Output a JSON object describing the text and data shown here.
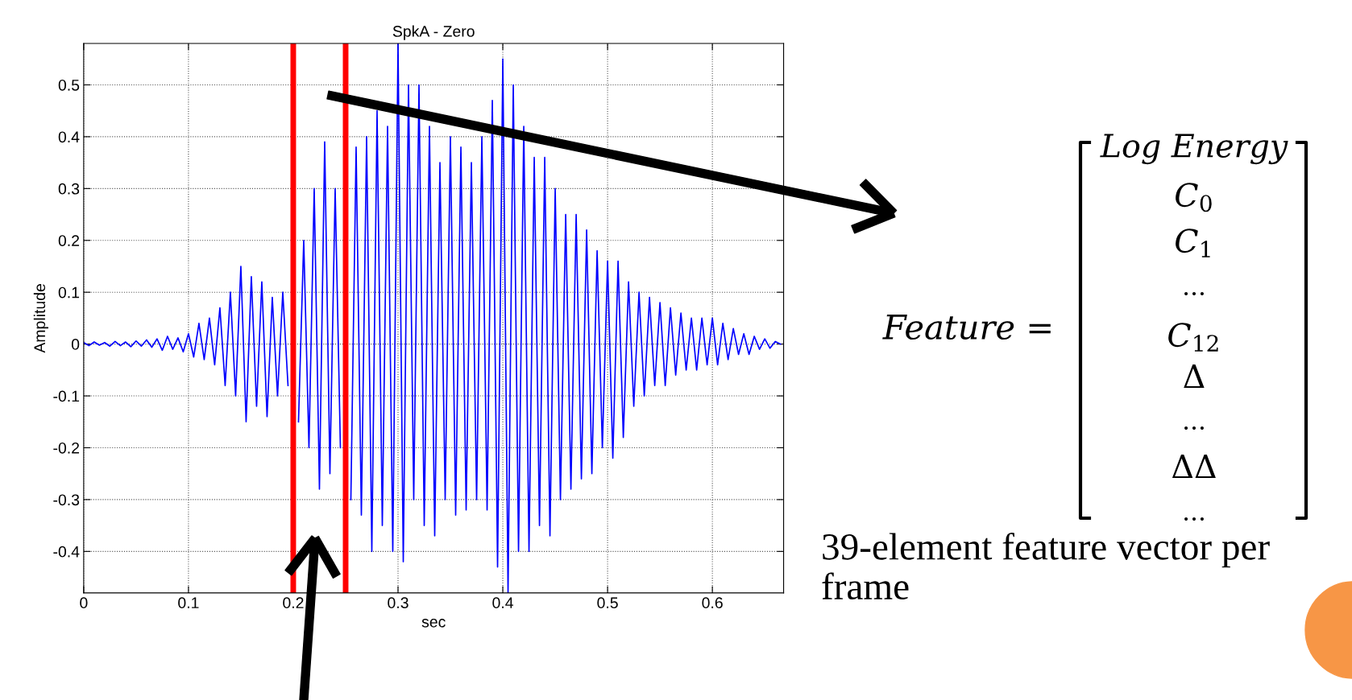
{
  "chart_data": {
    "type": "line",
    "title": "SpkA - Zero",
    "xlabel": "sec",
    "ylabel": "Amplitude",
    "x": [
      0,
      0.005,
      0.01,
      0.015,
      0.02,
      0.025,
      0.03,
      0.035,
      0.04,
      0.045,
      0.05,
      0.055,
      0.06,
      0.065,
      0.07,
      0.075,
      0.08,
      0.085,
      0.09,
      0.095,
      0.1,
      0.105,
      0.11,
      0.115,
      0.12,
      0.125,
      0.13,
      0.135,
      0.14,
      0.145,
      0.15,
      0.155,
      0.16,
      0.165,
      0.17,
      0.175,
      0.18,
      0.185,
      0.19,
      0.195,
      0.2,
      0.205,
      0.21,
      0.215,
      0.22,
      0.225,
      0.23,
      0.235,
      0.24,
      0.245,
      0.25,
      0.255,
      0.26,
      0.265,
      0.27,
      0.275,
      0.28,
      0.285,
      0.29,
      0.295,
      0.3,
      0.305,
      0.31,
      0.315,
      0.32,
      0.325,
      0.33,
      0.335,
      0.34,
      0.345,
      0.35,
      0.355,
      0.36,
      0.365,
      0.37,
      0.375,
      0.38,
      0.385,
      0.39,
      0.395,
      0.4,
      0.405,
      0.41,
      0.415,
      0.42,
      0.425,
      0.43,
      0.435,
      0.44,
      0.445,
      0.45,
      0.455,
      0.46,
      0.465,
      0.47,
      0.475,
      0.48,
      0.485,
      0.49,
      0.495,
      0.5,
      0.505,
      0.51,
      0.515,
      0.52,
      0.525,
      0.53,
      0.535,
      0.54,
      0.545,
      0.55,
      0.555,
      0.56,
      0.565,
      0.57,
      0.575,
      0.58,
      0.585,
      0.59,
      0.595,
      0.6,
      0.605,
      0.61,
      0.615,
      0.62,
      0.625,
      0.63,
      0.635,
      0.64,
      0.645,
      0.65,
      0.655,
      0.66,
      0.665
    ],
    "series": [
      {
        "color": "#0000ff",
        "values": [
          0.003,
          -0.003,
          0.004,
          -0.002,
          0.003,
          -0.004,
          0.005,
          -0.003,
          0.004,
          -0.005,
          0.006,
          -0.004,
          0.008,
          -0.006,
          0.01,
          -0.012,
          0.015,
          -0.01,
          0.012,
          -0.015,
          0.02,
          -0.025,
          0.04,
          -0.03,
          0.05,
          -0.04,
          0.07,
          -0.08,
          0.1,
          -0.1,
          0.15,
          -0.15,
          0.13,
          -0.12,
          0.12,
          -0.14,
          0.09,
          -0.1,
          0.1,
          -0.08,
          null,
          -0.15,
          0.2,
          -0.2,
          0.3,
          -0.28,
          0.39,
          -0.25,
          0.3,
          -0.2,
          null,
          -0.3,
          0.38,
          -0.33,
          0.4,
          -0.4,
          0.45,
          -0.35,
          0.42,
          -0.4,
          0.58,
          -0.42,
          0.5,
          -0.3,
          0.5,
          -0.35,
          0.42,
          -0.37,
          0.35,
          -0.3,
          0.4,
          -0.33,
          0.38,
          -0.32,
          0.35,
          -0.3,
          0.4,
          -0.32,
          0.47,
          -0.43,
          0.55,
          -0.48,
          0.5,
          -0.4,
          0.42,
          -0.4,
          0.36,
          -0.35,
          0.36,
          -0.37,
          0.3,
          -0.3,
          0.25,
          -0.28,
          0.25,
          -0.26,
          0.22,
          -0.25,
          0.18,
          -0.2,
          0.16,
          -0.22,
          0.16,
          -0.18,
          0.12,
          -0.12,
          0.1,
          -0.1,
          0.09,
          -0.08,
          0.08,
          -0.08,
          0.07,
          -0.06,
          0.06,
          -0.05,
          0.05,
          -0.05,
          0.05,
          -0.04,
          0.05,
          -0.04,
          0.04,
          -0.03,
          0.03,
          -0.02,
          0.02,
          -0.02,
          0.015,
          -0.01,
          0.01,
          -0.008,
          0.005,
          0
        ]
      }
    ],
    "xlim": [
      0,
      0.668
    ],
    "ylim": [
      -0.48,
      0.58
    ],
    "xticks": [
      0,
      0.1,
      0.2,
      0.3,
      0.4,
      0.5,
      0.6
    ],
    "yticks": [
      -0.4,
      -0.3,
      -0.2,
      -0.1,
      0,
      0.1,
      0.2,
      0.3,
      0.4,
      0.5
    ],
    "grid": true,
    "ref_lines": [
      {
        "axis": "x",
        "value": 0.2,
        "color": "#ff0000"
      },
      {
        "axis": "x",
        "value": 0.25,
        "color": "#ff0000"
      }
    ],
    "annotations": [
      "Feature =",
      "Log Energy",
      "C$_{0}$",
      "C$_{1}$",
      "...",
      "C$_{12}$",
      "Δ",
      "...",
      "ΔΔ",
      "...",
      "39-element feature vector per frame"
    ]
  }
}
